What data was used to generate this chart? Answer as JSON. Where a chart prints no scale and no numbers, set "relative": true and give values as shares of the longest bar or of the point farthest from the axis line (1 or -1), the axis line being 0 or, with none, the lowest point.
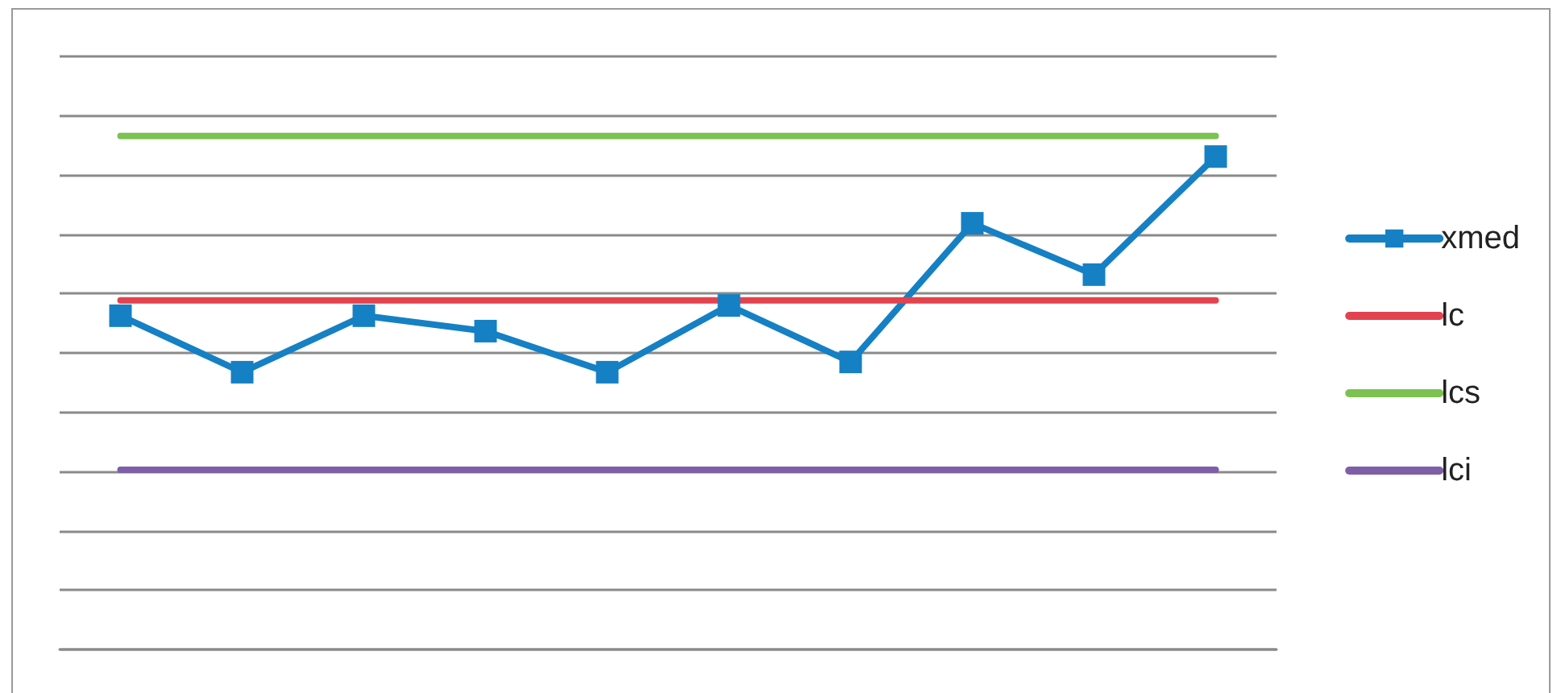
{
  "chart_data": {
    "type": "line",
    "relative": true,
    "categories": [
      null,
      null,
      null,
      null,
      null,
      null,
      null,
      null,
      null,
      null
    ],
    "series": [
      {
        "name": "xmed",
        "color": "#1580c4",
        "marker": "square",
        "values": [
          0.65,
          0.54,
          0.65,
          0.62,
          0.54,
          0.67,
          0.56,
          0.83,
          0.73,
          0.96
        ]
      },
      {
        "name": "lc",
        "color": "#e2434f",
        "marker": "none",
        "values": [
          0.68,
          0.68,
          0.68,
          0.68,
          0.68,
          0.68,
          0.68,
          0.68,
          0.68,
          0.68
        ]
      },
      {
        "name": "lcs",
        "color": "#7cc250",
        "marker": "none",
        "values": [
          1,
          1,
          1,
          1,
          1,
          1,
          1,
          1,
          1,
          1
        ]
      },
      {
        "name": "lci",
        "color": "#7f5ea8",
        "marker": "none",
        "values": [
          0.35,
          0.35,
          0.35,
          0.35,
          0.35,
          0.35,
          0.35,
          0.35,
          0.35,
          0.35
        ]
      }
    ],
    "grid": "y",
    "legend": "right"
  }
}
